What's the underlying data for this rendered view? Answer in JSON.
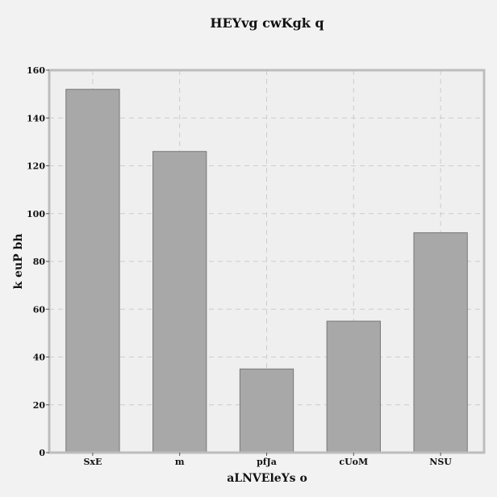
{
  "chart_data": {
    "type": "bar",
    "title": "HEYvg cwKgk q",
    "xlabel": "aLNVEleYs o",
    "ylabel": "k  euP bh",
    "categories": [
      "SxE",
      "m",
      "pfJa",
      "cUoM",
      "NSU"
    ],
    "values": [
      152,
      126,
      35,
      55,
      92
    ],
    "ylim": [
      0,
      160
    ],
    "yticks": [
      0,
      20,
      40,
      60,
      80,
      100,
      120,
      140,
      160
    ],
    "grid": true,
    "colors": {
      "bar_fill": "#a8a8a8",
      "bar_edge": "#777777",
      "plot_background": "#efefef",
      "frame": "#bdbdbd",
      "grid": "#cccccc"
    }
  }
}
